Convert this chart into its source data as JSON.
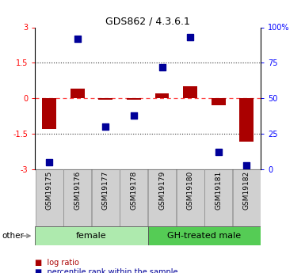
{
  "title": "GDS862 / 4.3.6.1",
  "samples": [
    "GSM19175",
    "GSM19176",
    "GSM19177",
    "GSM19178",
    "GSM19179",
    "GSM19180",
    "GSM19181",
    "GSM19182"
  ],
  "log_ratio": [
    -1.3,
    0.42,
    -0.05,
    -0.05,
    0.2,
    0.5,
    -0.28,
    -1.82
  ],
  "percentile_rank": [
    5,
    92,
    30,
    38,
    72,
    93,
    12,
    3
  ],
  "ylim_left": [
    -3,
    3
  ],
  "ylim_right": [
    0,
    100
  ],
  "yticks_left": [
    -3,
    -1.5,
    0,
    1.5,
    3
  ],
  "yticks_right": [
    0,
    25,
    50,
    75,
    100
  ],
  "group_female_label": "female",
  "group_male_label": "GH-treated male",
  "group_female_color": "#aeeaae",
  "group_male_color": "#55cc55",
  "sample_box_color": "#d0d0d0",
  "sample_box_edge_color": "#888888",
  "bar_color": "#aa0000",
  "scatter_color": "#000099",
  "bar_width": 0.5,
  "legend_bar_label": "log ratio",
  "legend_scatter_label": "percentile rank within the sample",
  "other_label": "other",
  "hline_red_color": "#ff4444",
  "hline_dot_color": "#333333",
  "title_fontsize": 9,
  "tick_fontsize": 7,
  "label_fontsize": 7,
  "sample_fontsize": 6.5,
  "group_fontsize": 8,
  "legend_fontsize": 7
}
